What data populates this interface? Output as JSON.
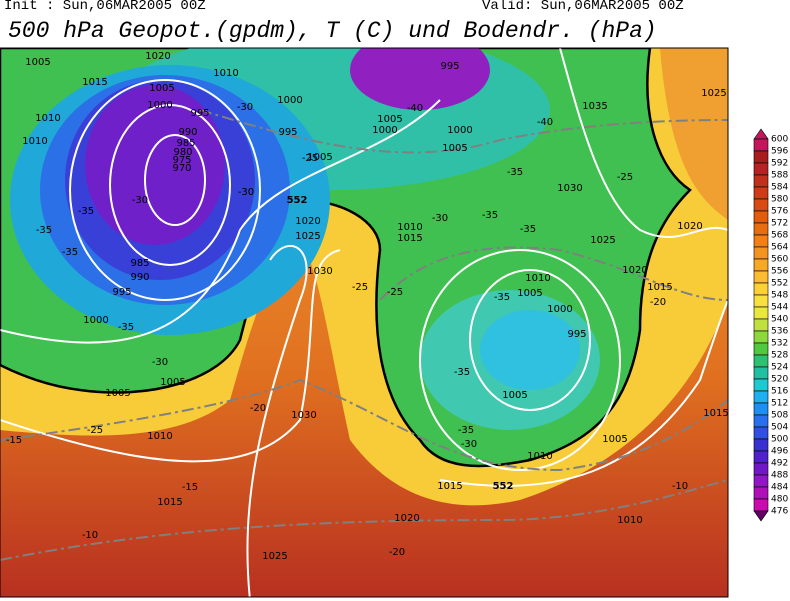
{
  "header": {
    "init": "Init : Sun,06MAR2005 00Z",
    "valid": "Valid: Sun,06MAR2005 00Z",
    "title": "500 hPa Geopot.(gpdm), T (C) und Bodendr. (hPa)"
  },
  "colorbar": {
    "labels": [
      600,
      596,
      592,
      588,
      584,
      580,
      576,
      572,
      568,
      564,
      560,
      556,
      552,
      548,
      544,
      540,
      536,
      532,
      528,
      524,
      520,
      516,
      512,
      508,
      504,
      500,
      496,
      492,
      488,
      484,
      480,
      476
    ],
    "colors": [
      "#c0185a",
      "#a81e1e",
      "#b42424",
      "#c0301c",
      "#cc3c18",
      "#d84c14",
      "#e05c10",
      "#e86c10",
      "#f08018",
      "#f49420",
      "#f8a828",
      "#fcbc30",
      "#fcd038",
      "#f8e040",
      "#e8e840",
      "#c0e040",
      "#8cd840",
      "#50c840",
      "#30c070",
      "#20c0a0",
      "#20c8d0",
      "#20b0f0",
      "#2090f0",
      "#2870f0",
      "#3050e0",
      "#3830d0",
      "#5020c8",
      "#7018c8",
      "#9018c0",
      "#b010b8",
      "#c80cb0",
      "#600060"
    ]
  },
  "map": {
    "pressure_labels": [
      1005,
      1015,
      1020,
      1010,
      1005,
      1000,
      995,
      990,
      985,
      980,
      975,
      970,
      1010,
      1010,
      1000,
      995,
      1005,
      1005,
      1000,
      995,
      1000,
      1005,
      1035,
      1030,
      1025,
      1020,
      1025,
      1010,
      1015,
      1030,
      985,
      990,
      995,
      1000,
      1005,
      1005,
      1010,
      1030,
      1015,
      1015,
      1020,
      1025,
      1010,
      1005,
      1000,
      995,
      1005,
      1010,
      1005,
      1020,
      1015,
      1020,
      1025,
      1015,
      1010
    ],
    "temperature_labels": [
      -35,
      -35,
      -35,
      -35,
      -30,
      -30,
      -30,
      -30,
      -25,
      -25,
      -20,
      -15,
      -15,
      -10,
      -40,
      -40,
      -35,
      -30,
      -35,
      -35,
      -25,
      -25,
      -35,
      -35,
      -35,
      -30,
      -25,
      -20,
      -10,
      -20
    ],
    "geopotential_labels": [
      552,
      552
    ]
  }
}
